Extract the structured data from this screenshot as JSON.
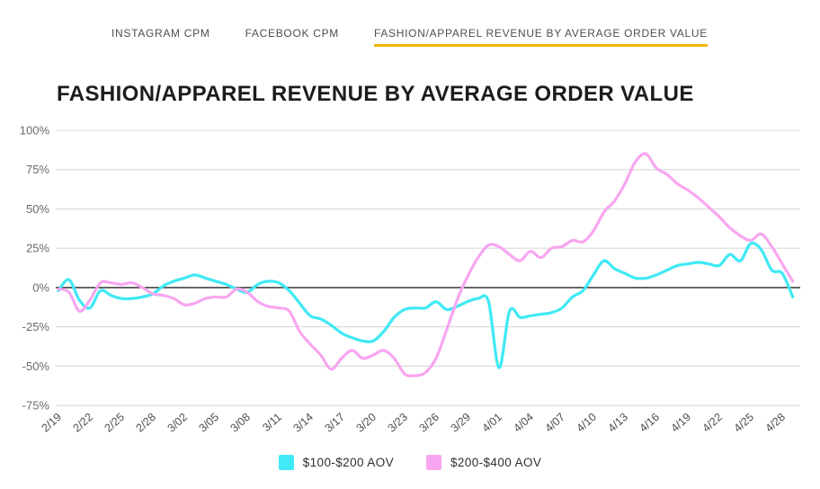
{
  "header": {
    "tabs": [
      {
        "label": "INSTAGRAM CPM",
        "active": false
      },
      {
        "label": "FACEBOOK CPM",
        "active": false
      },
      {
        "label": "FASHION/APPAREL REVENUE BY AVERAGE ORDER VALUE",
        "active": true
      }
    ],
    "active_tab_underline_color": "#edb80a"
  },
  "main": {
    "title": "FASHION/APPAREL REVENUE BY AVERAGE ORDER VALUE"
  },
  "legend": [
    {
      "label": "$100-$200 AOV",
      "color": "#3fe9f5"
    },
    {
      "label": "$200-$400 AOV",
      "color": "#f8a6f1"
    }
  ],
  "chart_data": {
    "type": "line",
    "title": "FASHION/APPAREL REVENUE BY AVERAGE ORDER VALUE",
    "xlabel": "",
    "ylabel": "",
    "y_unit": "%",
    "ylim": [
      -75,
      100
    ],
    "yticks": [
      100,
      75,
      50,
      25,
      0,
      -25,
      -50,
      -75
    ],
    "grid": "horizontal",
    "zero_line": true,
    "legend_position": "bottom",
    "x_tick_every": 3,
    "x_tick_labels": [
      "2/19",
      "2/22",
      "2/25",
      "2/28",
      "3/02",
      "3/05",
      "3/08",
      "3/11",
      "3/14",
      "3/17",
      "3/20",
      "3/23",
      "3/26",
      "3/29",
      "4/01",
      "4/04",
      "4/07",
      "4/10",
      "4/13",
      "4/16",
      "4/19",
      "4/22",
      "4/25",
      "4/28"
    ],
    "x": [
      "2/19",
      "2/20",
      "2/21",
      "2/22",
      "2/23",
      "2/24",
      "2/25",
      "2/26",
      "2/27",
      "2/28",
      "2/29",
      "3/01",
      "3/02",
      "3/03",
      "3/04",
      "3/05",
      "3/06",
      "3/07",
      "3/08",
      "3/09",
      "3/10",
      "3/11",
      "3/12",
      "3/13",
      "3/14",
      "3/15",
      "3/16",
      "3/17",
      "3/18",
      "3/19",
      "3/20",
      "3/21",
      "3/22",
      "3/23",
      "3/24",
      "3/25",
      "3/26",
      "3/27",
      "3/28",
      "3/29",
      "3/30",
      "3/31",
      "4/01",
      "4/02",
      "4/03",
      "4/04",
      "4/05",
      "4/06",
      "4/07",
      "4/08",
      "4/09",
      "4/10",
      "4/11",
      "4/12",
      "4/13",
      "4/14",
      "4/15",
      "4/16",
      "4/17",
      "4/18",
      "4/19",
      "4/20",
      "4/21",
      "4/22",
      "4/23",
      "4/24",
      "4/25",
      "4/26",
      "4/27",
      "4/28",
      "4/29"
    ],
    "series": [
      {
        "name": "$100-$200 AOV",
        "color": "#3fe9f5",
        "values": [
          -2,
          5,
          -8,
          -13,
          -2,
          -5,
          -7,
          -7,
          -6,
          -4,
          1,
          4,
          6,
          8,
          6,
          4,
          2,
          -1,
          -3,
          2,
          4,
          3,
          -2,
          -10,
          -18,
          -20,
          -24,
          -29,
          -32,
          -34,
          -34,
          -28,
          -19,
          -14,
          -13,
          -13,
          -9,
          -14,
          -12,
          -9,
          -7,
          -9,
          -51,
          -15,
          -19,
          -18,
          -17,
          -16,
          -13,
          -6,
          -2,
          8,
          17,
          12,
          9,
          6,
          6,
          8,
          11,
          14,
          15,
          16,
          15,
          14,
          21,
          17,
          28,
          24,
          11,
          9,
          -6
        ]
      },
      {
        "name": "$200-$400 AOV",
        "color": "#f8a6f1",
        "values": [
          -1,
          -3,
          -15,
          -8,
          3,
          3,
          2,
          3,
          0,
          -4,
          -5,
          -7,
          -11,
          -10,
          -7,
          -6,
          -6,
          -1,
          -3,
          -9,
          -12,
          -13,
          -15,
          -28,
          -36,
          -43,
          -52,
          -45,
          -40,
          -45,
          -43,
          -40,
          -45,
          -55,
          -56,
          -54,
          -45,
          -27,
          -8,
          7,
          19,
          27,
          26,
          21,
          17,
          23,
          19,
          25,
          26,
          30,
          29,
          36,
          48,
          55,
          66,
          80,
          85,
          76,
          72,
          66,
          62,
          57,
          51,
          45,
          38,
          33,
          30,
          34,
          26,
          15,
          4
        ]
      }
    ]
  }
}
